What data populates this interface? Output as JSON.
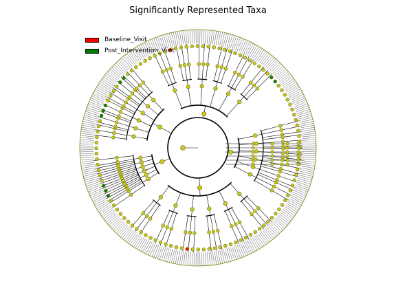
{
  "figure": {
    "title": "Significantly Represented Taxa"
  },
  "legend": {
    "items": [
      {
        "label": "Baseline_Visit",
        "color": "#ff0000"
      },
      {
        "label": "Post_Intervention_Visit",
        "color": "#008000"
      }
    ]
  },
  "colors": {
    "node_default": "#c8c81e",
    "node_stroke": "#6b6b10",
    "branch": "#000000",
    "outer_ring": "#808000"
  }
}
